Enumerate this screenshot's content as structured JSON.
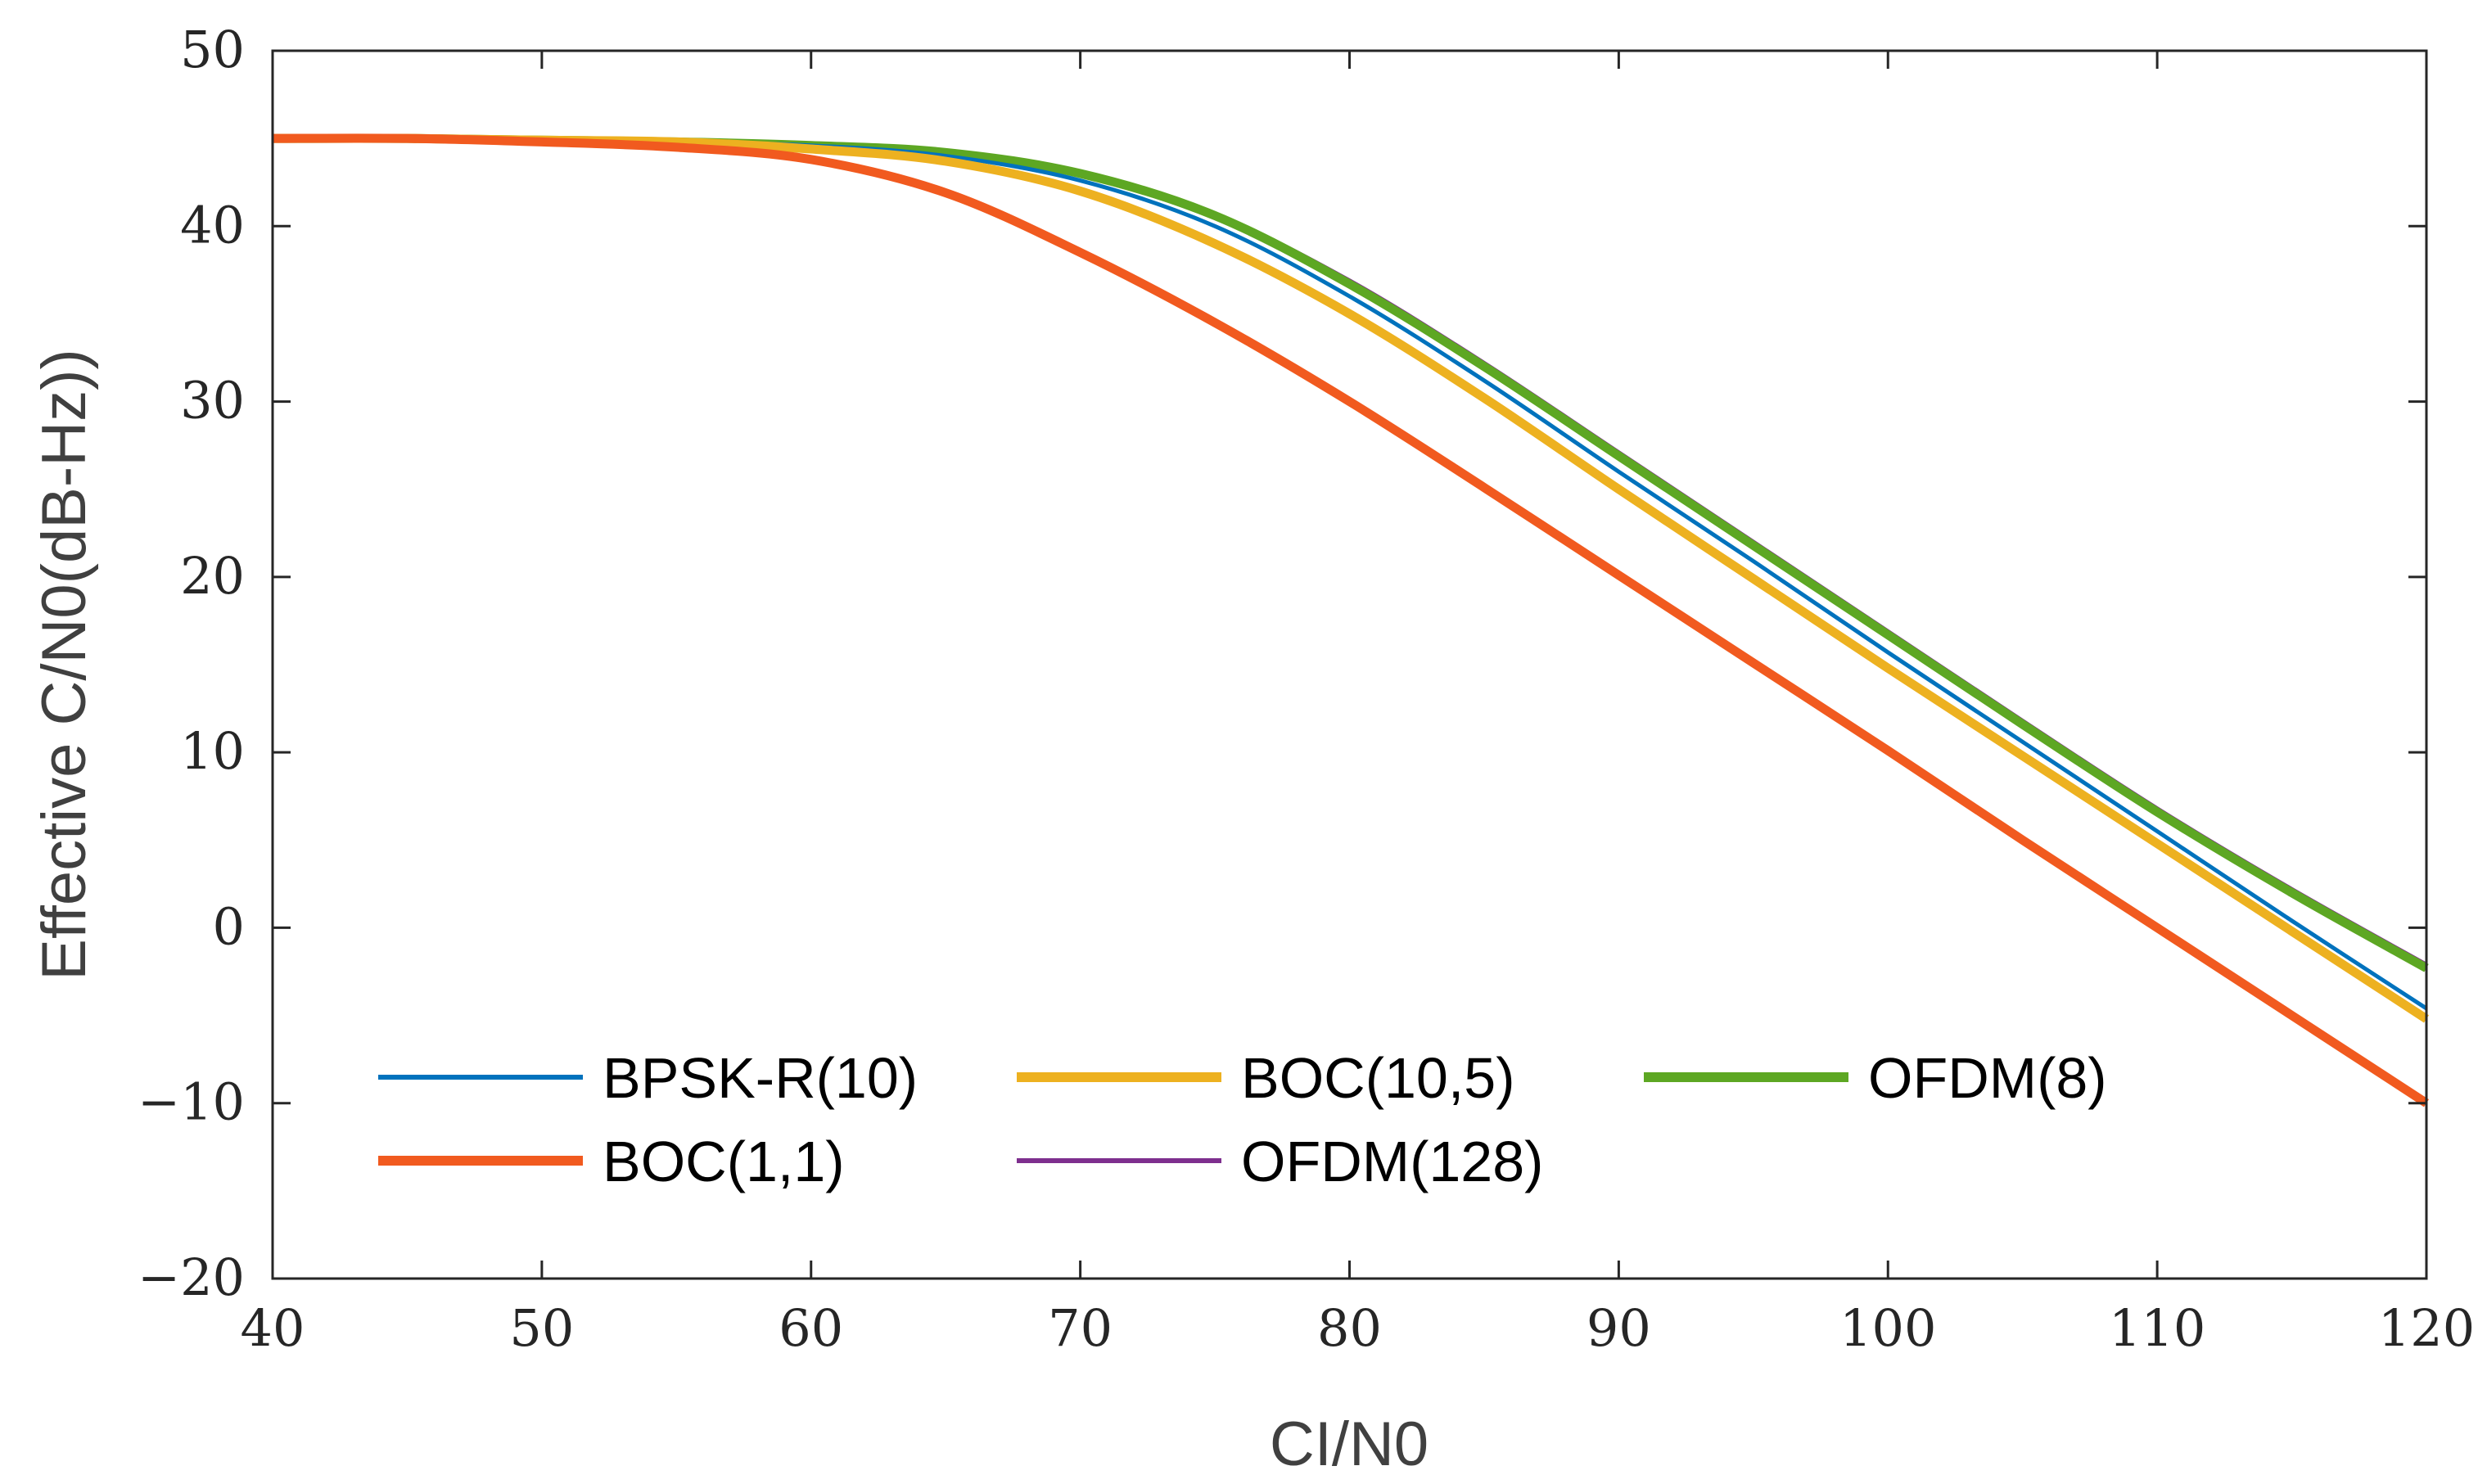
{
  "chart_data": {
    "type": "line",
    "title": "",
    "xlabel": "CI/N0",
    "ylabel": "Effective C/N0(dB-Hz))",
    "xlim": [
      40,
      120
    ],
    "ylim": [
      -20,
      50
    ],
    "xticks": [
      40,
      50,
      60,
      70,
      80,
      90,
      100,
      110,
      120
    ],
    "yticks": [
      -20,
      -10,
      0,
      10,
      20,
      30,
      40,
      50
    ],
    "xtick_labels": [
      "40",
      "50",
      "60",
      "70",
      "80",
      "90",
      "100",
      "110",
      "120"
    ],
    "ytick_labels": [
      "−20",
      "−10",
      "0",
      "10",
      "20",
      "30",
      "40",
      "50"
    ],
    "grid": false,
    "legend_position": "bottom-left",
    "x": [
      40,
      45,
      50,
      55,
      60,
      65,
      70,
      75,
      80,
      85,
      90,
      95,
      100,
      105,
      110,
      115,
      120
    ],
    "series": [
      {
        "name": "BPSK-R(10)",
        "color": "#0072BD",
        "width": "thin",
        "values": [
          45.0,
          45.0,
          44.9,
          44.8,
          44.6,
          44.0,
          42.6,
          40.0,
          36.0,
          31.2,
          26.0,
          20.9,
          15.7,
          10.6,
          5.5,
          0.4,
          -4.6
        ]
      },
      {
        "name": "BOC(10,5)",
        "color": "#EDB120",
        "width": "thick",
        "values": [
          45.0,
          45.0,
          44.9,
          44.8,
          44.4,
          43.7,
          42.0,
          39.0,
          35.0,
          30.2,
          25.0,
          19.9,
          14.8,
          9.8,
          4.8,
          -0.2,
          -5.2
        ]
      },
      {
        "name": "OFDM(8)",
        "color": "#5DA723",
        "width": "thick",
        "values": [
          45.0,
          45.0,
          44.9,
          44.8,
          44.6,
          44.2,
          43.0,
          40.6,
          36.7,
          32.0,
          26.9,
          21.8,
          16.7,
          11.6,
          6.6,
          2.0,
          -2.3
        ]
      },
      {
        "name": "BOC(1,1)",
        "color": "#F15A1F",
        "width": "thick",
        "values": [
          45.0,
          45.0,
          44.8,
          44.5,
          43.8,
          41.9,
          38.5,
          34.5,
          30.0,
          25.1,
          20.1,
          15.1,
          10.1,
          5.0,
          0.0,
          -5.0,
          -10.0
        ]
      },
      {
        "name": "OFDM(128)",
        "color": "#7E2F8E",
        "width": "thin",
        "values": [
          45.0,
          45.0,
          44.9,
          44.8,
          44.6,
          44.2,
          43.1,
          40.7,
          36.9,
          32.2,
          27.1,
          22.0,
          16.9,
          11.8,
          6.8,
          2.2,
          -2.1
        ]
      }
    ],
    "draw_order": [
      "OFDM(128)",
      "OFDM(8)",
      "BPSK-R(10)",
      "BOC(10,5)",
      "BOC(1,1)"
    ],
    "legend_rows": [
      [
        "BPSK-R(10)",
        "BOC(10,5)",
        "OFDM(8)"
      ],
      [
        "BOC(1,1)",
        "OFDM(128)"
      ]
    ]
  }
}
